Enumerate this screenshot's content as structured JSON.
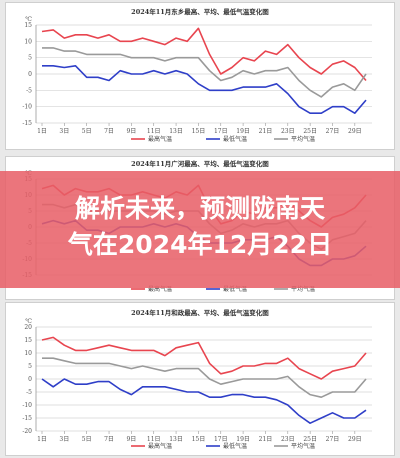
{
  "headline": {
    "line1": "解析未来，预测陇南天",
    "line2": "气在2024年12月22日"
  },
  "colors": {
    "high": "#e8454f",
    "low": "#2f3fc8",
    "avg": "#9a9a9a",
    "overlay": "#e85e66"
  },
  "chart_data": [
    {
      "type": "line",
      "title": "2024年11月东乡最高、平均、最低气温变化图",
      "unit": "℃",
      "ylim": [
        -15,
        15
      ],
      "yticks": [
        "15",
        "10",
        "5",
        "0",
        "-5",
        "-10",
        "-15"
      ],
      "xticks": [
        "1日",
        "3日",
        "5日",
        "7日",
        "9日",
        "11日",
        "13日",
        "15日",
        "17日",
        "19日",
        "21日",
        "23日",
        "25日",
        "27日",
        "29日"
      ],
      "x": [
        1,
        2,
        3,
        4,
        5,
        6,
        7,
        8,
        9,
        10,
        11,
        12,
        13,
        14,
        15,
        16,
        17,
        18,
        19,
        20,
        21,
        22,
        23,
        24,
        25,
        26,
        27,
        28,
        29,
        30
      ],
      "series": [
        {
          "name": "最高气温",
          "color": "#e8454f",
          "values": [
            13,
            13.5,
            11,
            12,
            12,
            11,
            12,
            10,
            10,
            11,
            10,
            9,
            11,
            10,
            14,
            6,
            0,
            2,
            5,
            4,
            7,
            6,
            9,
            5,
            2,
            0,
            3,
            4,
            2,
            -2
          ]
        },
        {
          "name": "最低气温",
          "color": "#2f3fc8",
          "values": [
            2.5,
            2.5,
            2,
            2.5,
            -1,
            -1,
            -2,
            1,
            0,
            0,
            1,
            0,
            1,
            0,
            -3,
            -5,
            -5,
            -5,
            -4,
            -4,
            -4,
            -3,
            -6,
            -10,
            -12,
            -12,
            -10,
            -10,
            -12,
            -8
          ]
        },
        {
          "name": "平均气温",
          "color": "#9a9a9a",
          "values": [
            8,
            8,
            7,
            7,
            6,
            6,
            6,
            6,
            5,
            5,
            5,
            4,
            5,
            5,
            5,
            1,
            -2,
            -1,
            1,
            0,
            1,
            1,
            2,
            -2,
            -5,
            -7,
            -4,
            -3,
            -5,
            0
          ]
        }
      ]
    },
    {
      "type": "line",
      "title": "2024年11月广河最高、平均、最低气温变化图",
      "unit": "℃",
      "ylim": [
        -15,
        15
      ],
      "yticks": [
        "15",
        "10",
        "5",
        "0",
        "-5",
        "-10",
        "-15"
      ],
      "xticks": [],
      "x": [
        1,
        2,
        3,
        4,
        5,
        6,
        7,
        8,
        9,
        10,
        11,
        12,
        13,
        14,
        15,
        16,
        17,
        18,
        19,
        20,
        21,
        22,
        23,
        24,
        25,
        26,
        27,
        28,
        29,
        30
      ],
      "series": [
        {
          "name": "最高气温",
          "color": "#e8454f",
          "values": [
            12,
            13,
            10,
            12,
            11,
            11,
            12,
            10,
            10,
            11,
            10,
            9,
            11,
            10,
            13,
            6,
            1,
            2,
            5,
            4,
            6,
            6,
            8,
            5,
            2,
            0,
            3,
            4,
            6,
            10
          ]
        },
        {
          "name": "最低气温",
          "color": "#2f3fc8",
          "values": [
            1,
            2,
            1,
            2,
            -1,
            -1,
            -2,
            0,
            0,
            0,
            1,
            0,
            1,
            0,
            -3,
            -5,
            -5,
            -5,
            -4,
            -4,
            -4,
            -3,
            -6,
            -10,
            -12,
            -12,
            -10,
            -10,
            -9,
            -6
          ]
        },
        {
          "name": "平均气温",
          "color": "#9a9a9a",
          "values": [
            7,
            7,
            6,
            7,
            5,
            5,
            5,
            5,
            5,
            5,
            5,
            4,
            5,
            5,
            5,
            1,
            -2,
            -1,
            1,
            0,
            1,
            1,
            2,
            -2,
            -5,
            -7,
            -4,
            -3,
            -2,
            2
          ]
        }
      ]
    },
    {
      "type": "line",
      "title": "2024年11月和政最高、平均、最低气温变化图",
      "unit": "℃",
      "ylim": [
        -20,
        20
      ],
      "yticks": [
        "20",
        "15",
        "10",
        "5",
        "0",
        "-5",
        "-10",
        "-15",
        "-20"
      ],
      "xticks": [
        "1日",
        "3日",
        "5日",
        "7日",
        "9日",
        "11日",
        "13日",
        "15日",
        "17日",
        "19日",
        "21日",
        "23日",
        "25日",
        "27日",
        "29日"
      ],
      "x": [
        1,
        2,
        3,
        4,
        5,
        6,
        7,
        8,
        9,
        10,
        11,
        12,
        13,
        14,
        15,
        16,
        17,
        18,
        19,
        20,
        21,
        22,
        23,
        24,
        25,
        26,
        27,
        28,
        29,
        30
      ],
      "series": [
        {
          "name": "最高气温",
          "color": "#e8454f",
          "values": [
            15,
            16,
            13,
            11,
            11,
            12,
            13,
            12,
            11,
            11,
            11,
            9,
            12,
            13,
            14,
            6,
            2,
            3,
            5,
            5,
            6,
            6,
            8,
            4,
            2,
            0,
            3,
            4,
            5,
            10
          ]
        },
        {
          "name": "最低气温",
          "color": "#2f3fc8",
          "values": [
            0,
            -3,
            0,
            -2,
            -2,
            -1,
            -1,
            -4,
            -6,
            -3,
            -3,
            -3,
            -4,
            -5,
            -5,
            -7,
            -7,
            -6,
            -6,
            -7,
            -7,
            -8,
            -10,
            -14,
            -17,
            -15,
            -13,
            -15,
            -15,
            -12
          ]
        },
        {
          "name": "平均气温",
          "color": "#9a9a9a",
          "values": [
            8,
            8,
            7,
            6,
            6,
            6,
            6,
            5,
            4,
            5,
            4,
            3,
            4,
            4,
            4,
            0,
            -2,
            -1,
            0,
            0,
            0,
            0,
            1,
            -3,
            -6,
            -7,
            -5,
            -5,
            -5,
            0
          ]
        }
      ]
    }
  ]
}
